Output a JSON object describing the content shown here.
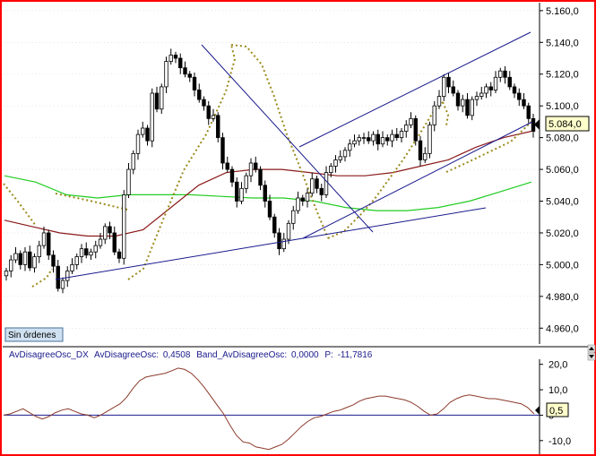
{
  "status_badge": "Sin órdenes",
  "price_panel": {
    "current_value_label": "5.084,0",
    "y_ticks": [
      {
        "value": 4960,
        "label": "4.960,0"
      },
      {
        "value": 4980,
        "label": "4.980,0"
      },
      {
        "value": 5000,
        "label": "5.000,0"
      },
      {
        "value": 5020,
        "label": "5.020,0"
      },
      {
        "value": 5040,
        "label": "5.040,0"
      },
      {
        "value": 5060,
        "label": "5.060,0"
      },
      {
        "value": 5080,
        "label": "5.080,0"
      },
      {
        "value": 5100,
        "label": "5.100,0"
      },
      {
        "value": 5120,
        "label": "5.120,0"
      },
      {
        "value": 5140,
        "label": "5.140,0"
      },
      {
        "value": 5160,
        "label": "5.160,0"
      }
    ]
  },
  "oscillator_panel": {
    "legend": {
      "name": "AvDisagreeOsc_DX",
      "series1_label": "AvDisagreeOsc:",
      "series1_value": "0,4508",
      "series2_label": "Band_AvDisagreeOsc:",
      "series2_value": "0,0000",
      "series3_label": "P:",
      "series3_value": "-11,7816"
    },
    "current_value_label": "0,5",
    "y_ticks": [
      {
        "value": 20,
        "label": "20,0"
      },
      {
        "value": 10,
        "label": "10,0"
      },
      {
        "value": 0,
        "label": "0"
      },
      {
        "value": -10,
        "label": "-10,0"
      }
    ]
  },
  "colors": {
    "frame": "#ff0000",
    "candles": "#000000",
    "ma_fast": "#8b1a1a",
    "ma_slow": "#22cc22",
    "dotted": "#9a8a1a",
    "trendlines": "#1a1a8c",
    "oscillator": "#8b3a2a",
    "badge_bg": "#cfe0f0",
    "badge_border": "#4a6f9a"
  },
  "chart_data": [
    {
      "type": "candlestick",
      "y_range": [
        4950,
        5165
      ],
      "closes": [
        4996,
        5003,
        5007,
        5000,
        5008,
        4998,
        5005,
        5012,
        5020,
        5006,
        4999,
        4985,
        4990,
        4996,
        5000,
        5005,
        5010,
        5006,
        5008,
        5012,
        5016,
        5024,
        5020,
        5008,
        5004,
        5044,
        5060,
        5070,
        5082,
        5086,
        5078,
        5108,
        5098,
        5112,
        5128,
        5132,
        5130,
        5124,
        5120,
        5118,
        5110,
        5104,
        5100,
        5092,
        5094,
        5080,
        5064,
        5060,
        5052,
        5040,
        5048,
        5056,
        5064,
        5060,
        5050,
        5040,
        5030,
        5020,
        5010,
        5016,
        5026,
        5034,
        5042,
        5040,
        5045,
        5054,
        5048,
        5044,
        5058,
        5062,
        5066,
        5068,
        5072,
        5076,
        5078,
        5080,
        5080,
        5078,
        5082,
        5076,
        5080,
        5078,
        5082,
        5080,
        5084,
        5088,
        5092,
        5078,
        5066,
        5070,
        5088,
        5100,
        5106,
        5118,
        5112,
        5108,
        5100,
        5104,
        5094,
        5104,
        5106,
        5108,
        5112,
        5110,
        5118,
        5122,
        5118,
        5112,
        5108,
        5104,
        5100,
        5092,
        5084
      ],
      "indicators": [
        "moving average (fast)",
        "moving average (slow)",
        "dotted indicator",
        "trend lines"
      ]
    },
    {
      "type": "line",
      "y_range": [
        -15,
        22
      ],
      "series": [
        {
          "values": [
            0,
            0.5,
            1.5,
            2.5,
            1,
            -0.5,
            -1.5,
            -0.5,
            1,
            2,
            2.5,
            1.5,
            0.5,
            0,
            -1,
            0,
            1.5,
            3,
            4.5,
            7,
            10.5,
            13.5,
            15,
            15.5,
            16,
            16.5,
            17.5,
            18.5,
            18,
            16.5,
            14,
            11,
            7.5,
            4,
            0.5,
            -4,
            -8,
            -10.5,
            -11,
            -12.5,
            -13,
            -13.5,
            -12.5,
            -11.5,
            -9.5,
            -7,
            -4.5,
            -2.5,
            -1,
            -0.5,
            0.5,
            1.5,
            2,
            3,
            4,
            5.5,
            6.5,
            7,
            7.5,
            7.5,
            7,
            6.5,
            6,
            5,
            3.5,
            1.5,
            0,
            0.5,
            2.5,
            5,
            6.5,
            7.5,
            8,
            7.5,
            7,
            6.5,
            6.5,
            6,
            5.5,
            5,
            4.5,
            3,
            0.5
          ]
        },
        {
          "values": [
            0,
            0
          ]
        }
      ]
    }
  ]
}
